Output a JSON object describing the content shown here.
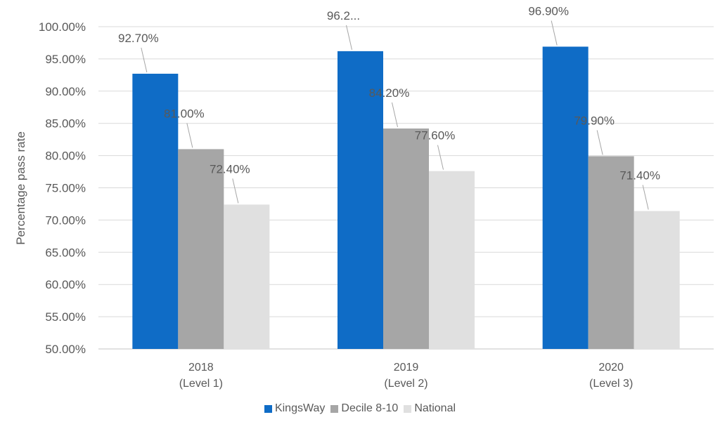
{
  "chart_data": {
    "type": "bar",
    "title": "",
    "xlabel": "",
    "ylabel": "Percentage pass rate",
    "ylim": [
      50,
      100
    ],
    "yticks": [
      "50.00%",
      "55.00%",
      "60.00%",
      "65.00%",
      "70.00%",
      "75.00%",
      "80.00%",
      "85.00%",
      "90.00%",
      "95.00%",
      "100.00%"
    ],
    "categories": [
      {
        "line1": "2018",
        "line2": "(Level 1)"
      },
      {
        "line1": "2019",
        "line2": "(Level 2)"
      },
      {
        "line1": "2020",
        "line2": "(Level 3)"
      }
    ],
    "series": [
      {
        "name": "KingsWay",
        "color": "#0f6cc6",
        "values": [
          92.7,
          96.2,
          96.9
        ],
        "labels": [
          "92.70%",
          "96.2...",
          "96.90%"
        ]
      },
      {
        "name": "Decile 8-10",
        "color": "#a6a6a6",
        "values": [
          81.0,
          84.2,
          79.9
        ],
        "labels": [
          "81.00%",
          "84.20%",
          "79.90%"
        ]
      },
      {
        "name": "National",
        "color": "#e0e0e0",
        "values": [
          72.4,
          77.6,
          71.4
        ],
        "labels": [
          "72.40%",
          "77.60%",
          "71.40%"
        ]
      }
    ],
    "grid": true,
    "legend_position": "bottom"
  }
}
